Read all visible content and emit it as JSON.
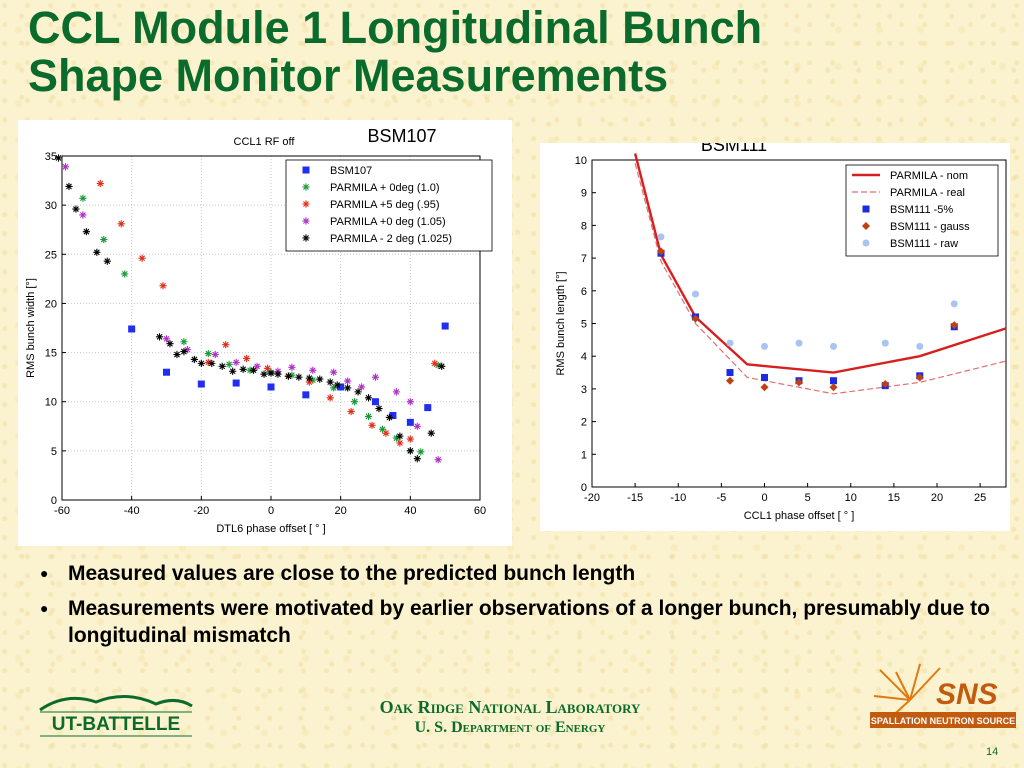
{
  "slide": {
    "title_line1": "CCL Module 1 Longitudinal Bunch",
    "title_line2": "Shape Monitor Measurements",
    "bullets": [
      "Measured values are close to the predicted bunch length",
      "Measurements were motivated by earlier observations of a longer bunch, presumably due to longitudinal mismatch"
    ],
    "footer_line1": "Oak Ridge National Laboratory",
    "footer_line2": "U. S. Department of Energy",
    "page_number": "14",
    "left_logo_text": "UT-BATTELLE",
    "right_logo_text": "SNS",
    "right_logo_subtext": "SPALLATION NEUTRON SOURCE",
    "colors": {
      "title": "#0b6b2c",
      "background": "#fbf3cf"
    }
  },
  "chart_data": [
    {
      "type": "scatter",
      "title": "BSM107",
      "subtitle": "CCL1 RF off",
      "xlabel": "DTL6 phase offset [ ° ]",
      "ylabel": "RMS bunch width [°]",
      "xlim": [
        -60,
        60
      ],
      "ylim": [
        0,
        35
      ],
      "xticks": [
        -60,
        -40,
        -20,
        0,
        20,
        40,
        60
      ],
      "yticks": [
        0,
        5,
        10,
        15,
        20,
        25,
        30,
        35
      ],
      "grid": true,
      "legend_position": "top-right",
      "series": [
        {
          "name": "BSM107",
          "marker": "square",
          "color": "#1f2ef0",
          "points": [
            [
              -40,
              17.4
            ],
            [
              -30,
              13
            ],
            [
              -20,
              11.8
            ],
            [
              -10,
              11.9
            ],
            [
              0,
              11.5
            ],
            [
              10,
              10.7
            ],
            [
              20,
              11.5
            ],
            [
              30,
              10
            ],
            [
              35,
              8.6
            ],
            [
              40,
              7.9
            ],
            [
              45,
              9.4
            ],
            [
              50,
              17.7
            ]
          ]
        },
        {
          "name": "PARMILA + 0deg (1.0)",
          "marker": "star",
          "color": "#1a9a3a",
          "points": [
            [
              -54,
              30.7
            ],
            [
              -48,
              26.5
            ],
            [
              -42,
              23
            ],
            [
              -25,
              16.1
            ],
            [
              -18,
              14.9
            ],
            [
              -12,
              13.8
            ],
            [
              -6,
              13.2
            ],
            [
              0,
              13
            ],
            [
              6,
              12.7
            ],
            [
              12,
              12.2
            ],
            [
              18,
              11.4
            ],
            [
              24,
              10
            ],
            [
              28,
              8.5
            ],
            [
              32,
              7.2
            ],
            [
              36,
              6.3
            ],
            [
              40,
              5
            ],
            [
              43,
              4.9
            ],
            [
              48,
              13.7
            ]
          ]
        },
        {
          "name": "PARMILA +5 deg (.95)",
          "marker": "star",
          "color": "#e0301a",
          "points": [
            [
              -49,
              32.2
            ],
            [
              -43,
              28.1
            ],
            [
              -37,
              24.6
            ],
            [
              -31,
              21.8
            ],
            [
              -18,
              14
            ],
            [
              -13,
              15.8
            ],
            [
              -7,
              14.4
            ],
            [
              -1,
              13.4
            ],
            [
              5,
              12.6
            ],
            [
              11,
              12
            ],
            [
              17,
              10.4
            ],
            [
              23,
              9
            ],
            [
              29,
              7.6
            ],
            [
              33,
              6.8
            ],
            [
              37,
              5.8
            ],
            [
              40,
              6.2
            ],
            [
              47,
              13.9
            ]
          ]
        },
        {
          "name": "PARMILA +0 deg (1.05)",
          "marker": "star",
          "color": "#b030c8",
          "points": [
            [
              -59,
              33.9
            ],
            [
              -54,
              29
            ],
            [
              -30,
              16.4
            ],
            [
              -24,
              15.3
            ],
            [
              -16,
              14.8
            ],
            [
              -10,
              14
            ],
            [
              -4,
              13.6
            ],
            [
              2,
              13.1
            ],
            [
              6,
              13.5
            ],
            [
              12,
              13.2
            ],
            [
              18,
              13
            ],
            [
              22,
              12.1
            ],
            [
              26,
              11.5
            ],
            [
              30,
              12.5
            ],
            [
              36,
              11
            ],
            [
              40,
              10
            ],
            [
              42,
              7.5
            ],
            [
              48,
              4.1
            ]
          ]
        },
        {
          "name": "PARMILA - 2 deg (1.025)",
          "marker": "star",
          "color": "#000000",
          "points": [
            [
              -61,
              34.8
            ],
            [
              -58,
              31.9
            ],
            [
              -56,
              29.6
            ],
            [
              -53,
              27.3
            ],
            [
              -50,
              25.2
            ],
            [
              -47,
              24.3
            ],
            [
              -32,
              16.6
            ],
            [
              -29,
              15.9
            ],
            [
              -27,
              14.8
            ],
            [
              -25,
              15.1
            ],
            [
              -22,
              14.3
            ],
            [
              -20,
              13.9
            ],
            [
              -17,
              13.9
            ],
            [
              -14,
              13.6
            ],
            [
              -11,
              13.1
            ],
            [
              -8,
              13.3
            ],
            [
              -5,
              13.2
            ],
            [
              -2,
              12.8
            ],
            [
              0,
              12.9
            ],
            [
              2,
              12.8
            ],
            [
              5,
              12.6
            ],
            [
              8,
              12.5
            ],
            [
              11,
              12.4
            ],
            [
              14,
              12.3
            ],
            [
              17,
              12
            ],
            [
              19,
              11.7
            ],
            [
              22,
              11.4
            ],
            [
              25,
              11
            ],
            [
              28,
              10.4
            ],
            [
              31,
              9.3
            ],
            [
              34,
              8.4
            ],
            [
              37,
              6.5
            ],
            [
              40,
              5
            ],
            [
              42,
              4.2
            ],
            [
              46,
              6.8
            ],
            [
              49,
              13.6
            ]
          ]
        }
      ]
    },
    {
      "type": "line",
      "title": "BSM111",
      "xlabel": "CCL1 phase offset [ ° ]",
      "ylabel": "RMS bunch length [°]",
      "xlim": [
        -20,
        28
      ],
      "ylim": [
        0,
        10
      ],
      "xticks": [
        -20,
        -15,
        -10,
        -5,
        0,
        5,
        10,
        15,
        20,
        25
      ],
      "yticks": [
        0,
        1,
        2,
        3,
        4,
        5,
        6,
        7,
        8,
        9,
        10
      ],
      "grid": false,
      "legend_position": "top-right",
      "series": [
        {
          "name": "PARMILA - nom",
          "style": "solid-line",
          "color": "#d62020",
          "points": [
            [
              -15,
              10.2
            ],
            [
              -12,
              7.1
            ],
            [
              -8,
              5.2
            ],
            [
              -2,
              3.75
            ],
            [
              8,
              3.5
            ],
            [
              18,
              4
            ],
            [
              28,
              4.85
            ]
          ]
        },
        {
          "name": "PARMILA - real",
          "style": "dashed-line",
          "color": "#e07070",
          "points": [
            [
              -15,
              9.9
            ],
            [
              -12,
              6.9
            ],
            [
              -8,
              5.0
            ],
            [
              -2,
              3.35
            ],
            [
              4,
              3.05
            ],
            [
              8,
              2.85
            ],
            [
              18,
              3.2
            ],
            [
              28,
              3.85
            ]
          ]
        },
        {
          "name": "BSM111 -5%",
          "marker": "square",
          "color": "#1a2be0",
          "points": [
            [
              -12,
              7.15
            ],
            [
              -8,
              5.2
            ],
            [
              -4,
              3.5
            ],
            [
              0,
              3.35
            ],
            [
              4,
              3.25
            ],
            [
              8,
              3.25
            ],
            [
              14,
              3.1
            ],
            [
              18,
              3.4
            ],
            [
              22,
              4.9
            ]
          ]
        },
        {
          "name": "BSM111 - gauss",
          "marker": "diamond",
          "color": "#c04010",
          "points": [
            [
              -12,
              7.2
            ],
            [
              -8,
              5.15
            ],
            [
              -4,
              3.25
            ],
            [
              0,
              3.05
            ],
            [
              4,
              3.2
            ],
            [
              8,
              3.05
            ],
            [
              14,
              3.15
            ],
            [
              18,
              3.35
            ],
            [
              22,
              4.95
            ]
          ]
        },
        {
          "name": "BSM111 - raw",
          "marker": "circle",
          "color": "#a8c4f0",
          "points": [
            [
              -12,
              7.65
            ],
            [
              -8,
              5.9
            ],
            [
              -4,
              4.4
            ],
            [
              0,
              4.3
            ],
            [
              4,
              4.4
            ],
            [
              8,
              4.3
            ],
            [
              14,
              4.4
            ],
            [
              18,
              4.3
            ],
            [
              22,
              5.6
            ]
          ]
        }
      ]
    }
  ]
}
